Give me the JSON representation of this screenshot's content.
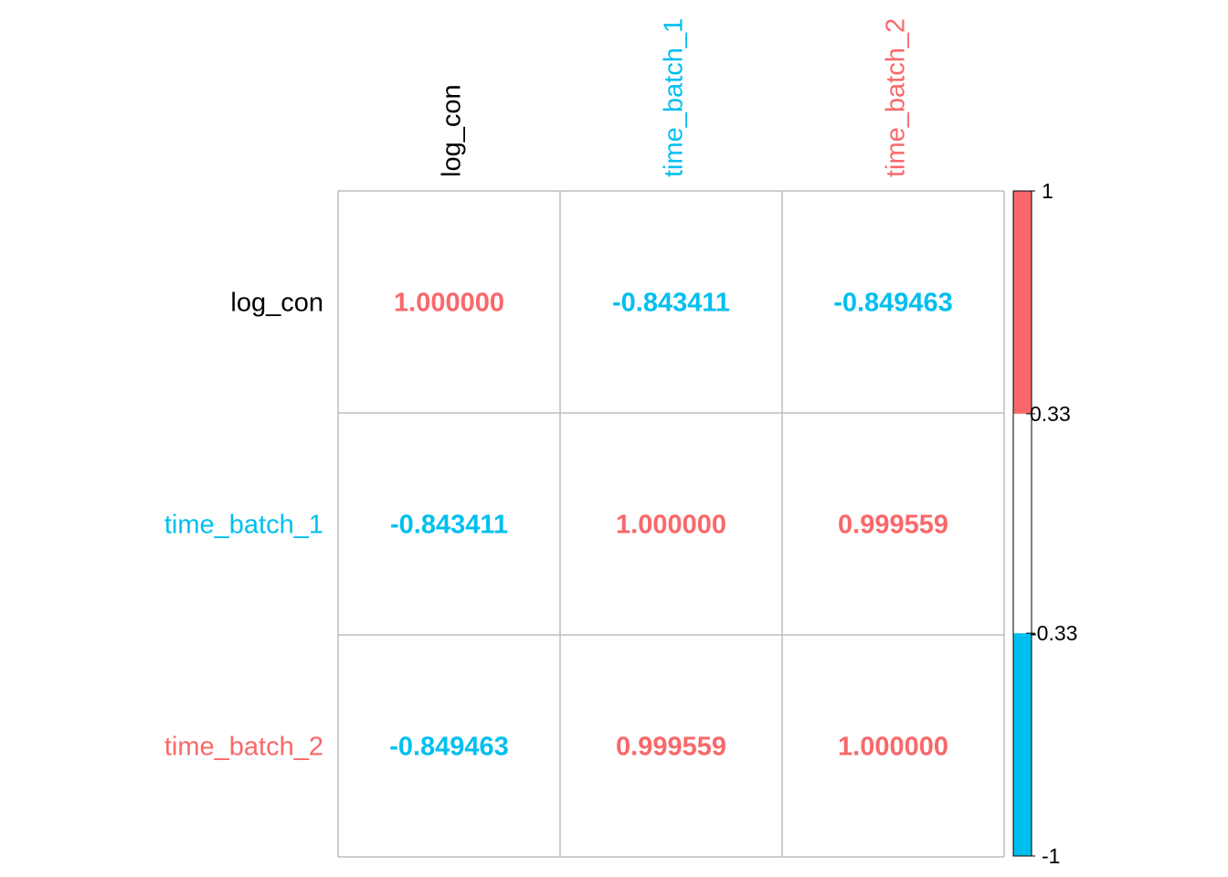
{
  "chart_data": {
    "type": "heatmap",
    "title": "",
    "variables": [
      "log_con",
      "time_batch_1",
      "time_batch_2"
    ],
    "label_colors": [
      "#000000",
      "#00BFEF",
      "#F8686A"
    ],
    "matrix": [
      [
        1.0,
        -0.843411,
        -0.849463
      ],
      [
        -0.843411,
        1.0,
        0.999559
      ],
      [
        -0.849463,
        0.999559,
        1.0
      ]
    ],
    "cell_text": [
      [
        "1.000000",
        "-0.843411",
        "-0.849463"
      ],
      [
        "-0.843411",
        "1.000000",
        "0.999559"
      ],
      [
        "-0.849463",
        "0.999559",
        "1.000000"
      ]
    ],
    "colorbar": {
      "range": [
        -1,
        1
      ],
      "breaks": [
        -1,
        -0.33,
        0.33,
        1
      ],
      "tick_labels": [
        "-1",
        "-0.33",
        "0.33",
        "1"
      ],
      "colors": [
        "#00BFEF",
        "#FFFFFF",
        "#F8686A"
      ]
    },
    "colors": {
      "positive": "#F8686A",
      "negative": "#00BFEF",
      "grid": "#BEBEBE",
      "text_default": "#000000"
    }
  }
}
